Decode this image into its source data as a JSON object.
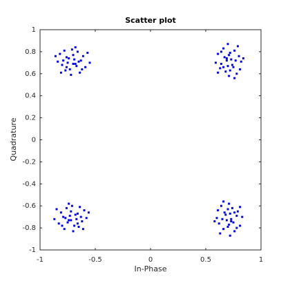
{
  "chart_data": {
    "type": "scatter",
    "title": "Scatter plot",
    "x_label": "In-Phase",
    "y_label": "Quadrature",
    "color": "#0000ff",
    "xlim": [
      -1,
      1
    ],
    "ylim": [
      -1,
      1
    ],
    "xticks": [
      -1,
      -0.5,
      0,
      0.5,
      1
    ],
    "yticks": [
      -1,
      -0.8,
      -0.6,
      -0.4,
      -0.2,
      0,
      0.2,
      0.4,
      0.6,
      0.8,
      1
    ],
    "x": [
      -0.68,
      -0.76,
      -0.63,
      -0.73,
      -0.7,
      -0.8,
      -0.66,
      -0.75,
      -0.59,
      -0.82,
      -0.69,
      -0.77,
      -0.64,
      -0.71,
      -0.84,
      -0.61,
      -0.74,
      -0.67,
      -0.78,
      -0.65,
      -0.72,
      -0.57,
      -0.79,
      -0.62,
      -0.76,
      -0.68,
      -0.81,
      -0.7,
      -0.55,
      -0.86,
      0.69,
      0.75,
      0.72,
      0.64,
      0.77,
      0.68,
      0.8,
      0.7,
      0.66,
      0.78,
      0.73,
      0.63,
      0.61,
      0.82,
      0.71,
      0.76,
      0.74,
      0.67,
      0.81,
      0.71,
      0.59,
      0.79,
      0.72,
      0.64,
      0.66,
      0.84,
      0.61,
      0.69,
      0.7,
      0.76,
      -0.74,
      -0.66,
      -0.79,
      -0.69,
      -0.72,
      -0.62,
      -0.76,
      -0.67,
      -0.83,
      -0.6,
      -0.73,
      -0.65,
      -0.78,
      -0.71,
      -0.58,
      -0.81,
      -0.68,
      -0.75,
      -0.64,
      -0.77,
      -0.7,
      -0.85,
      -0.63,
      -0.8,
      -0.66,
      -0.74,
      -0.61,
      -0.72,
      -0.87,
      -0.56,
      0.73,
      0.67,
      0.7,
      0.78,
      0.65,
      0.74,
      0.62,
      0.72,
      0.76,
      0.64,
      0.69,
      0.79,
      0.81,
      0.6,
      0.71,
      0.66,
      0.68,
      0.75,
      0.61,
      0.71,
      0.83,
      0.63,
      0.7,
      0.78,
      0.76,
      0.58,
      0.81,
      0.73,
      0.72,
      0.66
    ],
    "y": [
      0.69,
      0.75,
      0.72,
      0.64,
      0.77,
      0.68,
      0.8,
      0.7,
      0.66,
      0.78,
      0.73,
      0.63,
      0.61,
      0.82,
      0.71,
      0.76,
      0.74,
      0.67,
      0.81,
      0.71,
      0.59,
      0.79,
      0.72,
      0.64,
      0.66,
      0.84,
      0.61,
      0.69,
      0.7,
      0.76,
      0.74,
      0.66,
      0.79,
      0.69,
      0.72,
      0.62,
      0.76,
      0.67,
      0.83,
      0.6,
      0.73,
      0.65,
      0.78,
      0.71,
      0.58,
      0.81,
      0.68,
      0.75,
      0.64,
      0.77,
      0.7,
      0.85,
      0.63,
      0.8,
      0.66,
      0.74,
      0.61,
      0.72,
      0.87,
      0.56,
      -0.73,
      -0.67,
      -0.7,
      -0.78,
      -0.65,
      -0.74,
      -0.62,
      -0.72,
      -0.76,
      -0.64,
      -0.69,
      -0.79,
      -0.81,
      -0.6,
      -0.71,
      -0.66,
      -0.68,
      -0.75,
      -0.61,
      -0.71,
      -0.83,
      -0.63,
      -0.7,
      -0.78,
      -0.76,
      -0.58,
      -0.81,
      -0.73,
      -0.72,
      -0.66,
      -0.74,
      -0.66,
      -0.79,
      -0.69,
      -0.72,
      -0.62,
      -0.76,
      -0.67,
      -0.83,
      -0.6,
      -0.73,
      -0.65,
      -0.78,
      -0.71,
      -0.58,
      -0.81,
      -0.68,
      -0.75,
      -0.64,
      -0.77,
      -0.7,
      -0.85,
      -0.63,
      -0.8,
      -0.66,
      -0.74,
      -0.61,
      -0.72,
      -0.87,
      -0.56
    ]
  }
}
